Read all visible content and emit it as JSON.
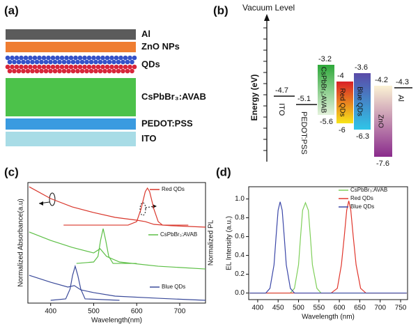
{
  "panel_labels": [
    "(a)",
    "(b)",
    "(c)",
    "(d)"
  ],
  "layers": [
    {
      "label": "Al",
      "color": "#5b5b5b"
    },
    {
      "label": "ZnO NPs",
      "color": "#ef7d31"
    },
    {
      "label": "QDs",
      "color": "#ffffff"
    },
    {
      "label": "CsPbBr₃:AVAB",
      "color": "#4cc24a"
    },
    {
      "label": "PEDOT:PSS",
      "color": "#3a9be0"
    },
    {
      "label": "ITO",
      "color": "#a8dce6"
    }
  ],
  "energy": {
    "title": "Vacuum Level",
    "axis_label": "Energy (eV)",
    "items": [
      {
        "label": "ITO",
        "level": -4.7
      },
      {
        "label": "PEDOT:PSS",
        "level": -5.1
      },
      {
        "label": "CsPbBr₃:AVAB",
        "top": -3.2,
        "bottom": -5.6,
        "colors": [
          "#2ea83a",
          "#e4f2dc"
        ]
      },
      {
        "label": "Red QDs",
        "top": -4.0,
        "bottom": -6.0,
        "colors": [
          "#d91f26",
          "#f7e51a"
        ]
      },
      {
        "label": "Blue QDs",
        "top": -3.6,
        "bottom": -6.3,
        "colors": [
          "#5a4aa8",
          "#2fc5e8"
        ]
      },
      {
        "label": "ZnO",
        "top": -4.2,
        "bottom": -7.6,
        "colors": [
          "#fbf2d4",
          "#8a2b8c"
        ]
      },
      {
        "label": "Al",
        "level": -4.3
      }
    ]
  },
  "chart_data": [
    {
      "type": "line",
      "xlabel": "Wavelength(nm)",
      "ylabel": "Normalized Absorbance(a.u)",
      "y2label": "Normalized PL",
      "xlim": [
        347,
        760
      ],
      "xticks": [
        400,
        500,
        600,
        700
      ],
      "ylim": [
        0,
        1
      ],
      "series": [
        {
          "name": "Red QDs",
          "color": "#d9362b",
          "absorbance": {
            "x": [
              350,
              400,
              450,
              500,
              550,
              600,
              620,
              640,
              680,
              760
            ],
            "values": [
              0.965,
              0.867,
              0.798,
              0.751,
              0.711,
              0.688,
              0.676,
              0.653,
              0.642,
              0.63
            ]
          },
          "pl": {
            "x": [
              430,
              580,
              600,
              610,
              620,
              625,
              630,
              640,
              650,
              660,
              720
            ],
            "values": [
              0.647,
              0.647,
              0.676,
              0.78,
              0.925,
              0.954,
              0.925,
              0.78,
              0.676,
              0.647,
              0.647
            ]
          }
        },
        {
          "name": "CsPbBr₃:AVAB",
          "color": "#5cbf45",
          "absorbance": {
            "x": [
              350,
              400,
              450,
              500,
              515,
              530,
              560,
              650,
              760
            ],
            "values": [
              0.59,
              0.52,
              0.462,
              0.416,
              0.451,
              0.387,
              0.341,
              0.306,
              0.283
            ]
          },
          "pl": {
            "x": [
              460,
              500,
              510,
              516,
              522,
              528,
              535,
              545,
              600
            ],
            "values": [
              0.329,
              0.341,
              0.387,
              0.52,
              0.618,
              0.52,
              0.387,
              0.329,
              0.329
            ]
          }
        },
        {
          "name": "Blue QDs",
          "color": "#3a4a9a",
          "absorbance": {
            "x": [
              350,
              400,
              440,
              455,
              470,
              500,
              550,
              650,
              760
            ],
            "values": [
              0.231,
              0.173,
              0.133,
              0.145,
              0.11,
              0.087,
              0.058,
              0.04,
              0.023
            ]
          },
          "pl": {
            "x": [
              400,
              435,
              445,
              451,
              457,
              463,
              470,
              480,
              560
            ],
            "values": [
              0.023,
              0.035,
              0.116,
              0.231,
              0.306,
              0.231,
              0.116,
              0.035,
              0.023
            ]
          }
        }
      ]
    },
    {
      "type": "line",
      "xlabel": "Wavelength (nm)",
      "ylabel": "EL Intensity (a.u.)",
      "xlim": [
        378,
        767
      ],
      "xticks": [
        400,
        450,
        500,
        550,
        600,
        650,
        700,
        750
      ],
      "ylim": [
        -0.07,
        1.13
      ],
      "yticks": [
        {
          "value": 0,
          "label": "0.0"
        },
        {
          "value": 0.2,
          "label": "0.2"
        },
        {
          "value": 0.4,
          "label": "0.4"
        },
        {
          "value": 0.6,
          "label": "0.6"
        },
        {
          "value": 0.8,
          "label": "0.8"
        },
        {
          "value": 1,
          "label": "1.0"
        }
      ],
      "series": [
        {
          "name": "CsPbBr₃:AVAB",
          "color": "#7fcf5a",
          "x": [
            380,
            480,
            490,
            500,
            505,
            510,
            517,
            524,
            529,
            534,
            545,
            555,
            765
          ],
          "values": [
            0,
            0,
            0.05,
            0.3,
            0.6,
            0.88,
            0.96,
            0.88,
            0.6,
            0.3,
            0.05,
            0,
            0
          ]
        },
        {
          "name": "Red QDs",
          "color": "#e0352b",
          "x": [
            380,
            580,
            595,
            605,
            612,
            618,
            623,
            628,
            634,
            641,
            652,
            665,
            765
          ],
          "values": [
            0,
            0,
            0.05,
            0.3,
            0.6,
            0.88,
            0.98,
            0.88,
            0.6,
            0.3,
            0.05,
            0,
            0
          ]
        },
        {
          "name": "Blue QDs",
          "color": "#3b47a8",
          "x": [
            380,
            420,
            430,
            440,
            445,
            450,
            455,
            460,
            465,
            470,
            480,
            490,
            765
          ],
          "values": [
            0,
            0,
            0.05,
            0.3,
            0.6,
            0.88,
            0.97,
            0.88,
            0.6,
            0.3,
            0.05,
            0,
            0
          ]
        }
      ]
    }
  ]
}
